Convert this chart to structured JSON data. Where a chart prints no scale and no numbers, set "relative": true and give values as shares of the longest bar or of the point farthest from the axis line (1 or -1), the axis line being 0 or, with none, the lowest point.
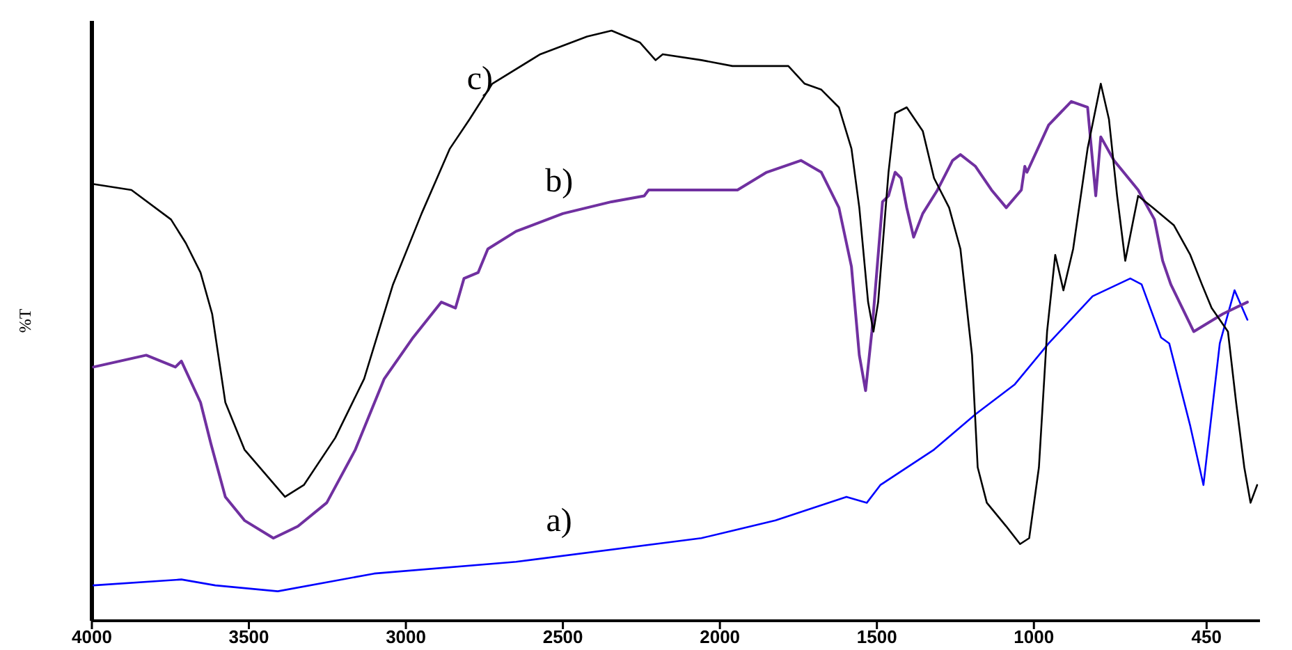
{
  "chart_data": {
    "type": "line",
    "ylabel": "%T",
    "relative": true,
    "xlim": [
      4000,
      280
    ],
    "xticks": [
      4000,
      3500,
      3000,
      2500,
      2000,
      1500,
      1000,
      450
    ],
    "legend": false,
    "grid": false,
    "marker": "none",
    "line_style": "solid",
    "series": [
      {
        "name": "a)",
        "color": "#0000ff",
        "x": [
          3995,
          3715,
          3607,
          3408,
          3101,
          2649,
          2059,
          1823,
          1597,
          1532,
          1489,
          1318,
          1186,
          1062,
          953,
          813,
          693,
          657,
          595,
          569,
          502,
          460,
          408,
          361,
          320
        ],
        "values": [
          0.06,
          0.07,
          0.06,
          0.05,
          0.08,
          0.1,
          0.14,
          0.17,
          0.21,
          0.2,
          0.23,
          0.29,
          0.35,
          0.4,
          0.47,
          0.55,
          0.58,
          0.57,
          0.48,
          0.47,
          0.33,
          0.23,
          0.47,
          0.56,
          0.51
        ]
      },
      {
        "name": "b)",
        "color": "#7030a0",
        "x": [
          3995,
          3827,
          3734,
          3715,
          3654,
          3621,
          3575,
          3514,
          3422,
          3344,
          3252,
          3161,
          3069,
          2977,
          2887,
          2842,
          2815,
          2770,
          2739,
          2649,
          2500,
          2345,
          2241,
          2227,
          2209,
          2059,
          1944,
          1851,
          1742,
          1677,
          1621,
          1581,
          1556,
          1536,
          1516,
          1482,
          1463,
          1442,
          1423,
          1405,
          1383,
          1354,
          1307,
          1259,
          1234,
          1186,
          1135,
          1088,
          1040,
          1029,
          1022,
          953,
          881,
          829,
          803,
          787,
          745,
          668,
          616,
          590,
          564,
          491,
          398,
          320
        ],
        "values": [
          0.43,
          0.45,
          0.43,
          0.44,
          0.37,
          0.3,
          0.21,
          0.17,
          0.14,
          0.16,
          0.2,
          0.29,
          0.41,
          0.48,
          0.54,
          0.53,
          0.58,
          0.59,
          0.63,
          0.66,
          0.69,
          0.71,
          0.72,
          0.73,
          0.73,
          0.73,
          0.73,
          0.76,
          0.78,
          0.76,
          0.7,
          0.6,
          0.45,
          0.39,
          0.49,
          0.71,
          0.72,
          0.76,
          0.75,
          0.7,
          0.65,
          0.69,
          0.73,
          0.78,
          0.79,
          0.77,
          0.73,
          0.7,
          0.73,
          0.77,
          0.76,
          0.84,
          0.88,
          0.87,
          0.72,
          0.82,
          0.78,
          0.73,
          0.68,
          0.61,
          0.57,
          0.49,
          0.52,
          0.54
        ]
      },
      {
        "name": "c)",
        "color": "#000000",
        "x": [
          3995,
          3874,
          3748,
          3701,
          3654,
          3617,
          3575,
          3514,
          3385,
          3325,
          3225,
          3133,
          3041,
          2950,
          2860,
          2797,
          2725,
          2572,
          2423,
          2345,
          2255,
          2205,
          2182,
          2059,
          1960,
          1851,
          1782,
          1730,
          1677,
          1621,
          1581,
          1556,
          1528,
          1511,
          1496,
          1463,
          1442,
          1405,
          1354,
          1318,
          1270,
          1234,
          1197,
          1179,
          1150,
          1088,
          1044,
          1015,
          984,
          958,
          932,
          906,
          875,
          829,
          787,
          761,
          735,
          709,
          683,
          668,
          621,
          554,
          502,
          465,
          434,
          382,
          356,
          330,
          310,
          289
        ],
        "values": [
          0.74,
          0.73,
          0.68,
          0.64,
          0.59,
          0.52,
          0.37,
          0.29,
          0.21,
          0.23,
          0.31,
          0.41,
          0.57,
          0.69,
          0.8,
          0.85,
          0.91,
          0.96,
          0.99,
          1.0,
          0.98,
          0.95,
          0.96,
          0.95,
          0.94,
          0.94,
          0.94,
          0.91,
          0.9,
          0.87,
          0.8,
          0.7,
          0.54,
          0.49,
          0.54,
          0.76,
          0.86,
          0.87,
          0.83,
          0.75,
          0.7,
          0.63,
          0.45,
          0.26,
          0.2,
          0.16,
          0.13,
          0.14,
          0.26,
          0.49,
          0.62,
          0.56,
          0.63,
          0.8,
          0.91,
          0.85,
          0.72,
          0.61,
          0.68,
          0.72,
          0.7,
          0.67,
          0.62,
          0.57,
          0.53,
          0.49,
          0.37,
          0.26,
          0.2,
          0.23
        ]
      }
    ]
  }
}
